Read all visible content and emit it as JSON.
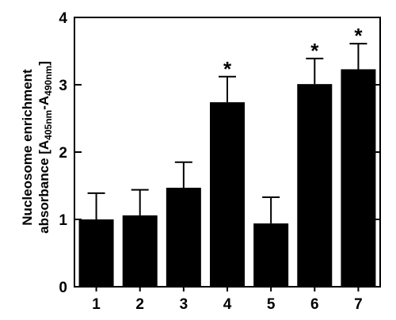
{
  "chart_data": {
    "type": "bar",
    "categories": [
      "1",
      "2",
      "3",
      "4",
      "5",
      "6",
      "7"
    ],
    "series": [
      {
        "values": [
          1.0,
          1.06,
          1.47,
          2.74,
          0.94,
          3.01,
          3.23
        ],
        "errors": [
          0.39,
          0.38,
          0.38,
          0.38,
          0.39,
          0.38,
          0.38
        ]
      }
    ],
    "significance": [
      "",
      "",
      "",
      "*",
      "",
      "*",
      "*"
    ],
    "ylabel_line1": "Nucleosome enrichment",
    "ylabel_line2": {
      "prefix": "absorbance [A",
      "sub1": "405nm",
      "mid": "-A",
      "sub2": "490nm",
      "suffix": "]"
    },
    "yticks": [
      "0",
      "1",
      "2",
      "3",
      "4"
    ],
    "ylim": [
      0,
      4
    ],
    "bar_color": "#000000",
    "grid": false
  }
}
